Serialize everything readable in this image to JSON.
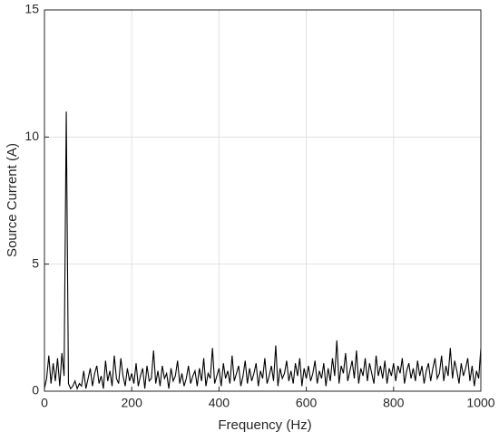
{
  "chart_data": {
    "type": "line",
    "xlabel": "Frequency (Hz)",
    "ylabel": "Source Current (A)",
    "x": [
      0,
      5,
      10,
      15,
      20,
      25,
      30,
      35,
      40,
      45,
      50,
      55,
      60,
      65,
      70,
      75,
      80,
      85,
      90,
      95,
      100,
      105,
      110,
      115,
      120,
      125,
      130,
      135,
      140,
      145,
      150,
      155,
      160,
      165,
      170,
      175,
      180,
      185,
      190,
      195,
      200,
      205,
      210,
      215,
      220,
      225,
      230,
      235,
      240,
      245,
      250,
      255,
      260,
      265,
      270,
      275,
      280,
      285,
      290,
      295,
      300,
      305,
      310,
      315,
      320,
      325,
      330,
      335,
      340,
      345,
      350,
      355,
      360,
      365,
      370,
      375,
      380,
      385,
      390,
      395,
      400,
      405,
      410,
      415,
      420,
      425,
      430,
      435,
      440,
      445,
      450,
      455,
      460,
      465,
      470,
      475,
      480,
      485,
      490,
      495,
      500,
      505,
      510,
      515,
      520,
      525,
      530,
      535,
      540,
      545,
      550,
      555,
      560,
      565,
      570,
      575,
      580,
      585,
      590,
      595,
      600,
      605,
      610,
      615,
      620,
      625,
      630,
      635,
      640,
      645,
      650,
      655,
      660,
      665,
      670,
      675,
      680,
      685,
      690,
      695,
      700,
      705,
      710,
      715,
      720,
      725,
      730,
      735,
      740,
      745,
      750,
      755,
      760,
      765,
      770,
      775,
      780,
      785,
      790,
      795,
      800,
      805,
      810,
      815,
      820,
      825,
      830,
      835,
      840,
      845,
      850,
      855,
      860,
      865,
      870,
      875,
      880,
      885,
      890,
      895,
      900,
      905,
      910,
      915,
      920,
      925,
      930,
      935,
      940,
      945,
      950,
      955,
      960,
      965,
      970,
      975,
      980,
      985,
      990,
      995,
      1000
    ],
    "series": [
      {
        "name": "Source Current",
        "color": "#000000",
        "values": [
          0.1,
          0.5,
          1.4,
          0.3,
          1.1,
          0.4,
          1.3,
          0.2,
          1.5,
          0.6,
          11,
          0.3,
          0.1,
          0.2,
          0.4,
          0.1,
          0.3,
          0.2,
          0.8,
          0.1,
          0.5,
          0.9,
          0.2,
          0.7,
          1.0,
          0.3,
          0.6,
          0.1,
          1.2,
          0.4,
          0.8,
          0.2,
          1.4,
          0.5,
          0.3,
          1.3,
          0.6,
          0.2,
          0.9,
          0.4,
          0.7,
          0.3,
          1.1,
          0.2,
          0.6,
          0.9,
          0.1,
          1.0,
          0.4,
          0.5,
          1.6,
          0.3,
          0.8,
          0.2,
          1.0,
          0.5,
          0.7,
          0.1,
          0.9,
          0.4,
          0.6,
          1.2,
          0.3,
          0.7,
          0.2,
          0.5,
          1.0,
          0.3,
          0.6,
          0.8,
          0.2,
          0.9,
          0.4,
          1.3,
          0.2,
          0.7,
          0.5,
          1.7,
          0.3,
          0.6,
          0.9,
          0.2,
          1.1,
          0.5,
          0.8,
          0.3,
          1.4,
          0.4,
          0.7,
          1.0,
          0.2,
          0.6,
          1.2,
          0.3,
          0.9,
          0.4,
          0.7,
          1.1,
          0.2,
          0.8,
          0.5,
          1.3,
          0.3,
          0.6,
          1.0,
          0.4,
          1.8,
          0.2,
          0.9,
          0.5,
          0.7,
          1.2,
          0.4,
          0.8,
          0.3,
          1.1,
          0.6,
          1.3,
          0.2,
          0.9,
          0.5,
          1.0,
          0.4,
          0.7,
          1.2,
          0.3,
          0.8,
          0.5,
          1.1,
          0.2,
          0.9,
          0.4,
          1.3,
          0.6,
          2.0,
          0.3,
          1.0,
          0.7,
          1.5,
          0.4,
          0.8,
          1.2,
          0.5,
          1.6,
          0.3,
          0.9,
          0.6,
          1.3,
          0.4,
          1.1,
          0.7,
          0.3,
          1.4,
          0.6,
          1.0,
          0.5,
          1.2,
          0.3,
          0.9,
          0.6,
          1.1,
          0.4,
          1.0,
          0.7,
          1.3,
          0.3,
          0.8,
          1.1,
          0.5,
          0.9,
          0.4,
          1.2,
          0.6,
          1.0,
          0.3,
          0.8,
          1.1,
          0.4,
          0.9,
          1.3,
          0.5,
          0.7,
          1.4,
          0.4,
          1.0,
          0.6,
          1.7,
          0.5,
          1.2,
          0.8,
          0.3,
          1.1,
          0.6,
          0.9,
          1.3,
          0.4,
          1.0,
          0.2,
          0.8,
          0.5,
          1.7
        ]
      }
    ],
    "xlim": [
      0,
      1000
    ],
    "xticks": [
      0,
      200,
      400,
      600,
      800,
      1000
    ],
    "ylim": [
      0,
      15
    ],
    "yticks": [
      0,
      5,
      10,
      15
    ],
    "grid": true
  }
}
